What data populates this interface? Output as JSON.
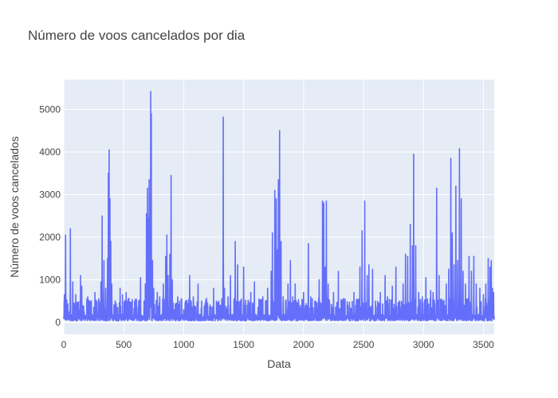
{
  "chart_data": {
    "type": "line",
    "title": "Número de voos cancelados por dia",
    "xlabel": "Data",
    "ylabel": "Número de voos cancelados",
    "xlim": [
      0,
      3590
    ],
    "ylim": [
      -280,
      5700
    ],
    "x_ticks": [
      0,
      500,
      1000,
      1500,
      2000,
      2500,
      3000,
      3500
    ],
    "y_ticks": [
      0,
      1000,
      2000,
      3000,
      4000,
      5000
    ],
    "grid": true,
    "colors": {
      "line": "#636efa",
      "plot_bg": "#e5ecf6",
      "grid": "#ffffff",
      "text": "#444444"
    },
    "baseline": 150,
    "spikes": [
      [
        5,
        650
      ],
      [
        15,
        2050
      ],
      [
        40,
        250
      ],
      [
        55,
        2200
      ],
      [
        75,
        950
      ],
      [
        100,
        650
      ],
      [
        125,
        300
      ],
      [
        140,
        1100
      ],
      [
        150,
        850
      ],
      [
        170,
        250
      ],
      [
        200,
        600
      ],
      [
        230,
        450
      ],
      [
        260,
        700
      ],
      [
        290,
        550
      ],
      [
        310,
        950
      ],
      [
        320,
        2500
      ],
      [
        335,
        1450
      ],
      [
        350,
        800
      ],
      [
        365,
        1500
      ],
      [
        372,
        3500
      ],
      [
        378,
        4050
      ],
      [
        385,
        2900
      ],
      [
        392,
        1900
      ],
      [
        400,
        900
      ],
      [
        420,
        400
      ],
      [
        450,
        350
      ],
      [
        470,
        800
      ],
      [
        490,
        650
      ],
      [
        520,
        700
      ],
      [
        560,
        400
      ],
      [
        600,
        550
      ],
      [
        640,
        1050
      ],
      [
        670,
        500
      ],
      [
        680,
        900
      ],
      [
        690,
        2550
      ],
      [
        698,
        3150
      ],
      [
        705,
        2450
      ],
      [
        712,
        3350
      ],
      [
        720,
        1800
      ],
      [
        725,
        5420
      ],
      [
        730,
        4900
      ],
      [
        740,
        1450
      ],
      [
        750,
        800
      ],
      [
        780,
        700
      ],
      [
        800,
        600
      ],
      [
        830,
        900
      ],
      [
        850,
        1550
      ],
      [
        860,
        2050
      ],
      [
        870,
        1100
      ],
      [
        885,
        1600
      ],
      [
        895,
        3450
      ],
      [
        905,
        1000
      ],
      [
        920,
        300
      ],
      [
        950,
        600
      ],
      [
        980,
        550
      ],
      [
        1000,
        300
      ],
      [
        1050,
        1100
      ],
      [
        1080,
        600
      ],
      [
        1120,
        900
      ],
      [
        1150,
        500
      ],
      [
        1200,
        450
      ],
      [
        1250,
        800
      ],
      [
        1300,
        400
      ],
      [
        1330,
        4820
      ],
      [
        1340,
        800
      ],
      [
        1370,
        600
      ],
      [
        1390,
        1100
      ],
      [
        1420,
        550
      ],
      [
        1430,
        1900
      ],
      [
        1450,
        1350
      ],
      [
        1470,
        500
      ],
      [
        1500,
        1300
      ],
      [
        1530,
        400
      ],
      [
        1560,
        700
      ],
      [
        1590,
        950
      ],
      [
        1620,
        350
      ],
      [
        1660,
        600
      ],
      [
        1700,
        800
      ],
      [
        1730,
        1200
      ],
      [
        1740,
        2100
      ],
      [
        1760,
        3100
      ],
      [
        1772,
        2900
      ],
      [
        1782,
        1700
      ],
      [
        1790,
        3350
      ],
      [
        1800,
        4500
      ],
      [
        1812,
        1900
      ],
      [
        1830,
        600
      ],
      [
        1850,
        500
      ],
      [
        1870,
        900
      ],
      [
        1890,
        1450
      ],
      [
        1910,
        600
      ],
      [
        1930,
        900
      ],
      [
        1960,
        450
      ],
      [
        2000,
        700
      ],
      [
        2040,
        1850
      ],
      [
        2060,
        600
      ],
      [
        2100,
        500
      ],
      [
        2130,
        1000
      ],
      [
        2158,
        2850
      ],
      [
        2168,
        2800
      ],
      [
        2178,
        1300
      ],
      [
        2190,
        2850
      ],
      [
        2205,
        900
      ],
      [
        2250,
        700
      ],
      [
        2290,
        1200
      ],
      [
        2330,
        550
      ],
      [
        2370,
        400
      ],
      [
        2420,
        700
      ],
      [
        2470,
        1300
      ],
      [
        2488,
        2150
      ],
      [
        2510,
        2850
      ],
      [
        2530,
        1100
      ],
      [
        2545,
        1350
      ],
      [
        2575,
        1250
      ],
      [
        2600,
        500
      ],
      [
        2640,
        700
      ],
      [
        2680,
        1100
      ],
      [
        2700,
        600
      ],
      [
        2740,
        850
      ],
      [
        2770,
        1300
      ],
      [
        2800,
        500
      ],
      [
        2830,
        900
      ],
      [
        2850,
        1600
      ],
      [
        2868,
        1550
      ],
      [
        2890,
        2300
      ],
      [
        2908,
        1800
      ],
      [
        2918,
        3950
      ],
      [
        2935,
        1800
      ],
      [
        2960,
        700
      ],
      [
        2990,
        600
      ],
      [
        3020,
        1050
      ],
      [
        3060,
        750
      ],
      [
        3080,
        700
      ],
      [
        3110,
        3150
      ],
      [
        3130,
        1100
      ],
      [
        3160,
        500
      ],
      [
        3190,
        900
      ],
      [
        3210,
        1250
      ],
      [
        3228,
        3850
      ],
      [
        3240,
        2100
      ],
      [
        3255,
        1350
      ],
      [
        3270,
        3200
      ],
      [
        3285,
        1450
      ],
      [
        3300,
        4080
      ],
      [
        3315,
        2900
      ],
      [
        3330,
        1200
      ],
      [
        3350,
        900
      ],
      [
        3380,
        1550
      ],
      [
        3400,
        1200
      ],
      [
        3420,
        1550
      ],
      [
        3440,
        900
      ],
      [
        3470,
        800
      ],
      [
        3500,
        650
      ],
      [
        3520,
        900
      ],
      [
        3540,
        1500
      ],
      [
        3555,
        1300
      ],
      [
        3565,
        1450
      ],
      [
        3575,
        800
      ],
      [
        3585,
        700
      ]
    ]
  }
}
